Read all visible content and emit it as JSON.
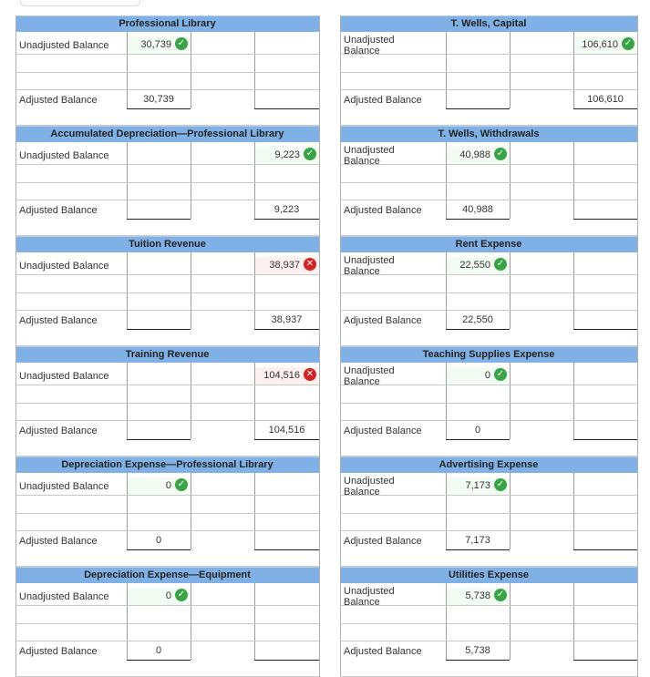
{
  "labels": {
    "unadjusted": "Unadjusted Balance",
    "adjusted": "Adjusted Balance",
    "unadjusted_line1": "Unadjusted",
    "unadjusted_line2": "Balance"
  },
  "left_accounts": [
    {
      "title": "Professional Library",
      "unadj_debit": "30,739",
      "unadj_debit_status": "correct",
      "unadj_credit": "",
      "unadj_credit_status": "",
      "adj_debit": "30,739",
      "adj_credit": ""
    },
    {
      "title": "Accumulated Depreciation—Professional Library",
      "unadj_debit": "",
      "unadj_debit_status": "",
      "unadj_credit": "9,223",
      "unadj_credit_status": "correct",
      "adj_debit": "",
      "adj_credit": "9,223"
    },
    {
      "title": "Tuition Revenue",
      "unadj_debit": "",
      "unadj_debit_status": "",
      "unadj_credit": "38,937",
      "unadj_credit_status": "wrong",
      "adj_debit": "",
      "adj_credit": "38,937"
    },
    {
      "title": "Training Revenue",
      "unadj_debit": "",
      "unadj_debit_status": "",
      "unadj_credit": "104,516",
      "unadj_credit_status": "wrong",
      "adj_debit": "",
      "adj_credit": "104,516"
    },
    {
      "title": "Depreciation Expense—Professional Library",
      "unadj_debit": "0",
      "unadj_debit_status": "correct",
      "unadj_credit": "",
      "unadj_credit_status": "",
      "adj_debit": "0",
      "adj_credit": ""
    },
    {
      "title": "Depreciation Expense—Equipment",
      "unadj_debit": "0",
      "unadj_debit_status": "correct",
      "unadj_credit": "",
      "unadj_credit_status": "",
      "adj_debit": "0",
      "adj_credit": ""
    }
  ],
  "right_accounts": [
    {
      "title": "T. Wells, Capital",
      "unadj_debit": "",
      "unadj_debit_status": "",
      "unadj_credit": "106,610",
      "unadj_credit_status": "correct",
      "adj_debit": "",
      "adj_credit": "106,610"
    },
    {
      "title": "T. Wells, Withdrawals",
      "unadj_debit": "40,988",
      "unadj_debit_status": "correct",
      "unadj_credit": "",
      "unadj_credit_status": "",
      "adj_debit": "40,988",
      "adj_credit": ""
    },
    {
      "title": "Rent Expense",
      "unadj_debit": "22,550",
      "unadj_debit_status": "correct",
      "unadj_credit": "",
      "unadj_credit_status": "",
      "adj_debit": "22,550",
      "adj_credit": ""
    },
    {
      "title": "Teaching Supplies Expense",
      "unadj_debit": "0",
      "unadj_debit_status": "correct",
      "unadj_credit": "",
      "unadj_credit_status": "",
      "adj_debit": "0",
      "adj_credit": ""
    },
    {
      "title": "Advertising Expense",
      "unadj_debit": "7,173",
      "unadj_debit_status": "correct",
      "unadj_credit": "",
      "unadj_credit_status": "",
      "adj_debit": "7,173",
      "adj_credit": ""
    },
    {
      "title": "Utilities Expense",
      "unadj_debit": "5,738",
      "unadj_debit_status": "correct",
      "unadj_credit": "",
      "unadj_credit_status": "",
      "adj_debit": "5,738",
      "adj_credit": ""
    }
  ],
  "colors": {
    "header": "#7fb1e6",
    "correct": "#3aa346",
    "wrong": "#d12424"
  },
  "icons": {
    "correct": "check-circle-icon",
    "wrong": "x-circle-icon"
  }
}
